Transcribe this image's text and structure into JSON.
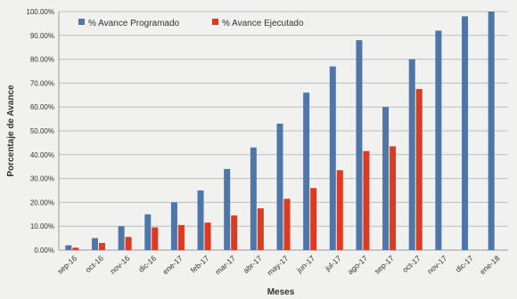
{
  "chart_data": {
    "type": "bar",
    "title": "",
    "xlabel": "Meses",
    "ylabel": "Porcentaje de Avance",
    "ylim": [
      0,
      100
    ],
    "yticks": [
      "0.00%",
      "10.00%",
      "20.00%",
      "30.00%",
      "40.00%",
      "50.00%",
      "60.00%",
      "70.00%",
      "80.00%",
      "90.00%",
      "100.00%"
    ],
    "categories": [
      "sep-16",
      "oct-16",
      "nov-16",
      "dic-16",
      "ene-17",
      "feb-17",
      "mar-17",
      "abr-17",
      "may-17",
      "jun-17",
      "jul-17",
      "ago-17",
      "sep-17",
      "oct-17",
      "nov-17",
      "dic-17",
      "ene-18"
    ],
    "series": [
      {
        "name": "% Avance Programado",
        "color": "#4f76a8",
        "values": [
          2,
          5,
          10,
          15,
          20,
          25,
          34,
          43,
          53,
          66,
          77,
          88,
          60,
          80,
          92,
          98,
          100
        ]
      },
      {
        "name": "% Avance Ejecutado",
        "color": "#dc3b22",
        "values": [
          1,
          3,
          5.5,
          9.5,
          10.5,
          11.5,
          14.5,
          17.5,
          21.5,
          26,
          33.5,
          41.5,
          43.5,
          67.5,
          null,
          null,
          null
        ]
      }
    ],
    "grid": true,
    "legend_position": "top-left"
  }
}
